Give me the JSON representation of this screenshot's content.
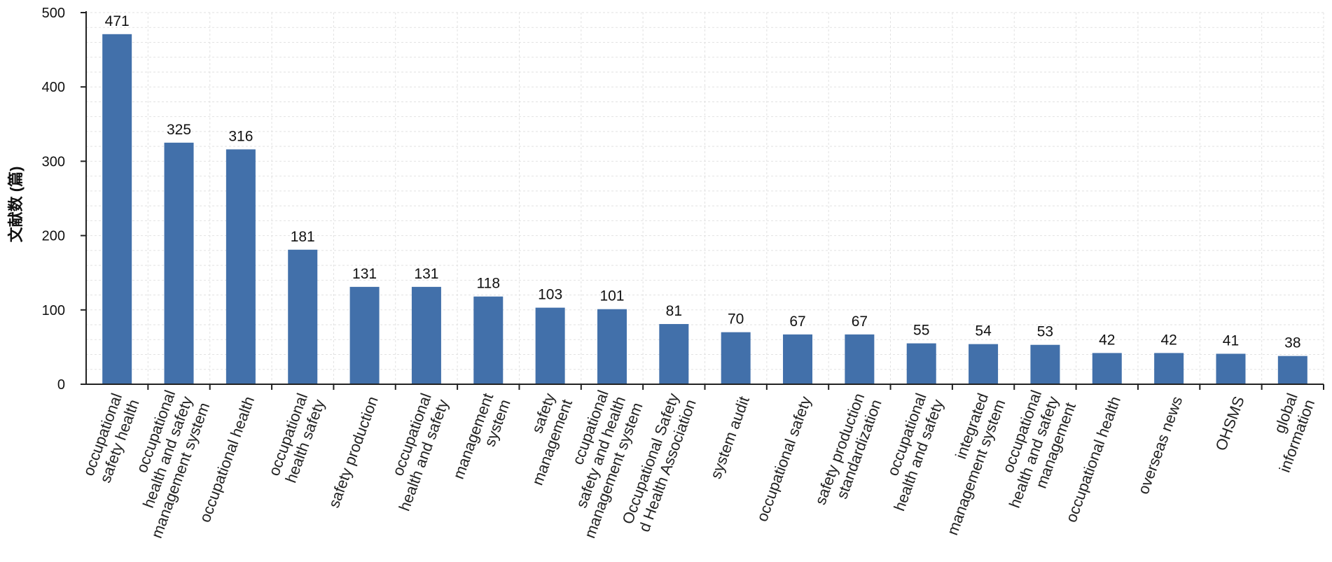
{
  "chart_data": {
    "type": "bar",
    "categories": [
      [
        "occupational",
        "safety health"
      ],
      [
        "occupational",
        "health and safety",
        "management system"
      ],
      [
        "occupational health"
      ],
      [
        "occupational",
        "health safety"
      ],
      [
        "safety production"
      ],
      [
        "occupational",
        "health and safety"
      ],
      [
        "management",
        "system"
      ],
      [
        "safety",
        "management"
      ],
      [
        "ccupational",
        "safety and health",
        "management system"
      ],
      [
        "Occupational Safety",
        "d Health Association"
      ],
      [
        "system audit"
      ],
      [
        "occupational safety"
      ],
      [
        "safety production",
        "standardization"
      ],
      [
        "occupational",
        "health and safety"
      ],
      [
        "integrated",
        "management system"
      ],
      [
        "occupational",
        "health and safety",
        "management"
      ],
      [
        "occupational health"
      ],
      [
        "overseas news"
      ],
      [
        "OHSMS"
      ],
      [
        "global",
        "information"
      ]
    ],
    "values": [
      471,
      325,
      316,
      181,
      131,
      131,
      118,
      103,
      101,
      81,
      70,
      67,
      67,
      55,
      54,
      53,
      42,
      42,
      41,
      38
    ],
    "title": "",
    "xlabel": "",
    "ylabel": "文献数 (篇)",
    "ylim": [
      0,
      500
    ],
    "yticks": [
      0,
      100,
      200,
      300,
      400,
      500
    ],
    "bar_color": "#4270aa",
    "grid": true
  }
}
